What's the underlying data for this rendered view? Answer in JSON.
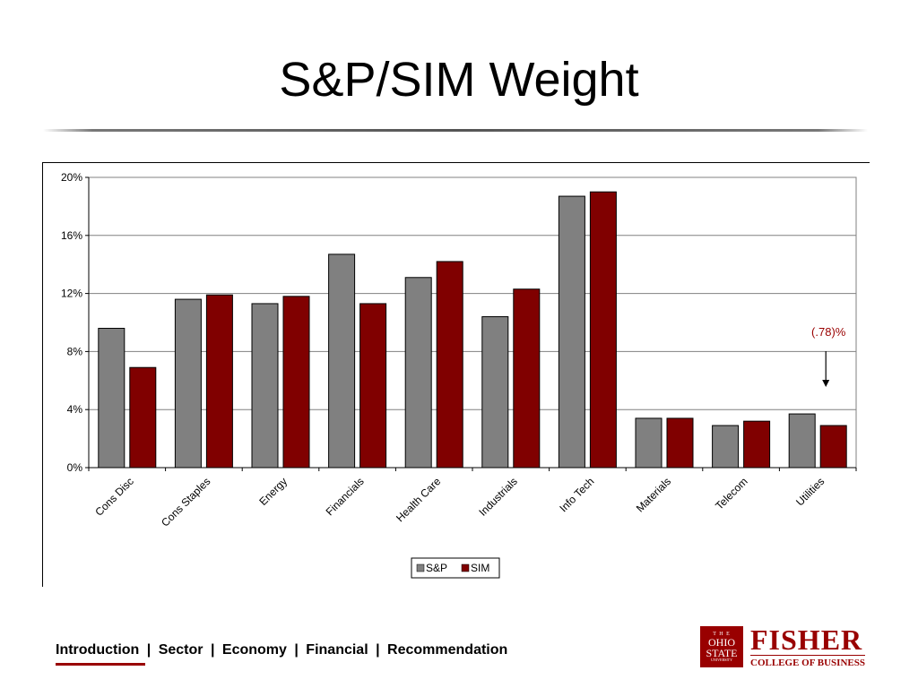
{
  "slide": {
    "title": "S&P/SIM Weight"
  },
  "colors": {
    "sp": "#808080",
    "sim": "#800000",
    "accent": "#990000",
    "annotation": "#990000"
  },
  "chart_data": {
    "type": "bar",
    "categories": [
      "Cons Disc",
      "Cons Staples",
      "Energy",
      "Financials",
      "Health Care",
      "Industrials",
      "Info Tech",
      "Materials",
      "Telecom",
      "Utilities"
    ],
    "series": [
      {
        "name": "S&P",
        "values": [
          9.6,
          11.6,
          11.3,
          14.7,
          13.1,
          10.4,
          18.7,
          3.4,
          2.9,
          3.7
        ]
      },
      {
        "name": "SIM",
        "values": [
          6.9,
          11.9,
          11.8,
          11.3,
          14.2,
          12.3,
          19.0,
          3.4,
          3.2,
          2.9
        ]
      }
    ],
    "yticks": [
      "0%",
      "4%",
      "8%",
      "12%",
      "16%",
      "20%"
    ],
    "ytick_values": [
      0,
      4,
      8,
      12,
      16,
      20
    ],
    "ylim": [
      0,
      20
    ],
    "grid": true,
    "legend": "bottom-center",
    "annotation": {
      "text": "(.78)%",
      "category": "Utilities"
    }
  },
  "footer": {
    "nav": [
      "Introduction",
      "Sector",
      "Economy",
      "Financial",
      "Recommendation"
    ],
    "separator": "|",
    "active": "Introduction"
  },
  "logo": {
    "seal_top": "T H E",
    "seal_line1": "OHIO",
    "seal_line2": "STATE",
    "seal_line3": "UNIVERSITY",
    "name": "FISHER",
    "subtitle": "COLLEGE OF BUSINESS"
  }
}
